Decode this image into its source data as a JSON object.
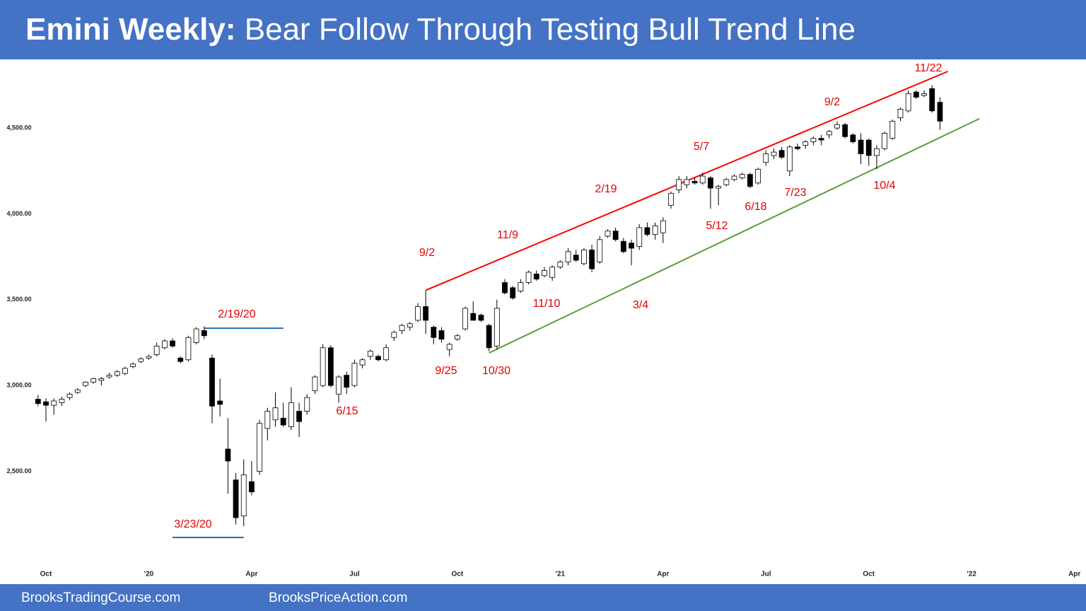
{
  "header": {
    "title_bold": "Emini Weekly:",
    "title": "Bear Follow Through Testing Bull Trend Line"
  },
  "footer": {
    "left": "BrooksTradingCourse.com",
    "right": "BrooksPriceAction.com"
  },
  "chart_data": {
    "type": "candlestick",
    "categories": [
      null,
      "Oct",
      null,
      null,
      null,
      null,
      null,
      null,
      null,
      null,
      null,
      null,
      null,
      null,
      "'20",
      null,
      null,
      null,
      null,
      null,
      null,
      null,
      null,
      null,
      null,
      null,
      null,
      "Apr",
      null,
      null,
      null,
      null,
      null,
      null,
      null,
      null,
      null,
      null,
      null,
      null,
      "Jul",
      null,
      null,
      null,
      null,
      null,
      null,
      null,
      null,
      null,
      null,
      null,
      null,
      "Oct",
      null,
      null,
      null,
      null,
      null,
      null,
      null,
      null,
      null,
      null,
      null,
      null,
      "'21",
      null,
      null,
      null,
      null,
      null,
      null,
      null,
      null,
      null,
      null,
      null,
      null,
      "Apr",
      null,
      null,
      null,
      null,
      null,
      null,
      null,
      null,
      null,
      null,
      null,
      null,
      "Jul",
      null,
      null,
      null,
      null,
      null,
      null,
      null,
      null,
      null,
      null,
      null,
      null,
      "Oct",
      null,
      null,
      null,
      null,
      null,
      null,
      null,
      null,
      null,
      null,
      null,
      null,
      "'22",
      null,
      null,
      null,
      null,
      null,
      null,
      null,
      null,
      null,
      null,
      null,
      null,
      "Apr"
    ],
    "open": [
      2920,
      2905,
      2885,
      2900,
      2930,
      2960,
      3000,
      3020,
      3030,
      3050,
      3060,
      3070,
      3110,
      3140,
      3160,
      3180,
      3220,
      3260,
      3160,
      3150,
      3250,
      3320,
      3160,
      2910,
      2630,
      2450,
      2240,
      2440,
      2500,
      2750,
      2800,
      2810,
      2760,
      2850,
      2850,
      2970,
      3000,
      3220,
      2950,
      3060,
      3000,
      3120,
      3170,
      3170,
      3150,
      3280,
      3320,
      3340,
      3380,
      3460,
      3340,
      3320,
      3210,
      3270,
      3330,
      3420,
      3410,
      3350,
      3230,
      3600,
      3570,
      3550,
      3600,
      3650,
      3640,
      3630,
      3690,
      3720,
      3760,
      3710,
      3790,
      3720,
      3870,
      3900,
      3840,
      3830,
      3810,
      3920,
      3880,
      3890,
      4050,
      4140,
      4170,
      4190,
      4180,
      4210,
      4150,
      4170,
      4200,
      4210,
      4230,
      4180,
      4300,
      4340,
      4370,
      4250,
      4390,
      4400,
      4420,
      4440,
      4460,
      4500,
      4520,
      4460,
      4430,
      4430,
      4340,
      4380,
      4440,
      4560,
      4600,
      4710,
      4690,
      4730,
      4650,
      null,
      null,
      null,
      null,
      null,
      null,
      null,
      null,
      null,
      null,
      null,
      null,
      null,
      null,
      null,
      null,
      null
    ],
    "high": [
      2945,
      2925,
      2925,
      2935,
      2960,
      2985,
      3025,
      3045,
      3050,
      3075,
      3090,
      3110,
      3135,
      3165,
      3180,
      3250,
      3270,
      3275,
      3170,
      3290,
      3340,
      3345,
      3180,
      3040,
      2810,
      2490,
      2570,
      2560,
      2800,
      2870,
      2960,
      2900,
      2990,
      2900,
      2950,
      3060,
      3240,
      3235,
      3060,
      3080,
      3150,
      3160,
      3210,
      3180,
      3240,
      3320,
      3360,
      3370,
      3480,
      3555,
      3350,
      3340,
      3250,
      3300,
      3460,
      3490,
      3420,
      3360,
      3500,
      3620,
      3580,
      3620,
      3670,
      3670,
      3690,
      3700,
      3730,
      3800,
      3790,
      3800,
      3820,
      3870,
      3910,
      3920,
      3860,
      3850,
      3940,
      3950,
      3950,
      3980,
      4130,
      4220,
      4220,
      4210,
      4240,
      4220,
      4170,
      4210,
      4230,
      4240,
      4240,
      4270,
      4370,
      4380,
      4390,
      4400,
      4410,
      4430,
      4450,
      4460,
      4490,
      4540,
      4530,
      4470,
      4470,
      4440,
      4400,
      4480,
      4550,
      4620,
      4720,
      4720,
      4720,
      4750,
      4680,
      null,
      null,
      null,
      null,
      null,
      null,
      null,
      null,
      null,
      null,
      null,
      null,
      null,
      null,
      null,
      null,
      null
    ],
    "low": [
      2880,
      2790,
      2830,
      2880,
      2915,
      2950,
      2990,
      3010,
      3000,
      3040,
      3050,
      3060,
      3100,
      3130,
      3150,
      3170,
      3210,
      3220,
      3130,
      3140,
      3240,
      3270,
      2780,
      2820,
      2370,
      2190,
      2180,
      2360,
      2480,
      2680,
      2760,
      2760,
      2740,
      2700,
      2830,
      2950,
      2990,
      2990,
      2900,
      2950,
      2990,
      3100,
      3150,
      3140,
      3140,
      3260,
      3300,
      3320,
      3370,
      3300,
      3240,
      3250,
      3170,
      3260,
      3320,
      3380,
      3370,
      3200,
      3210,
      3530,
      3500,
      3540,
      3590,
      3610,
      3630,
      3610,
      3680,
      3700,
      3720,
      3700,
      3660,
      3710,
      3860,
      3840,
      3770,
      3700,
      3790,
      3870,
      3850,
      3830,
      4030,
      4120,
      4150,
      4170,
      4170,
      4030,
      4050,
      4160,
      4190,
      4200,
      4150,
      4170,
      4280,
      4320,
      4320,
      4220,
      4370,
      4380,
      4400,
      4400,
      4440,
      4490,
      4440,
      4410,
      4290,
      4280,
      4260,
      4370,
      4430,
      4540,
      4590,
      4670,
      4680,
      4590,
      4490,
      null,
      null,
      null,
      null,
      null,
      null,
      null,
      null,
      null,
      null,
      null,
      null,
      null,
      null,
      null,
      null,
      null
    ],
    "close": [
      2895,
      2885,
      2910,
      2920,
      2950,
      2975,
      3020,
      3040,
      3040,
      3060,
      3080,
      3100,
      3125,
      3155,
      3170,
      3230,
      3260,
      3230,
      3140,
      3280,
      3330,
      3290,
      2880,
      2890,
      2560,
      2230,
      2480,
      2380,
      2780,
      2850,
      2870,
      2770,
      2900,
      2790,
      2930,
      3050,
      3220,
      3000,
      3050,
      2990,
      3130,
      3150,
      3200,
      3150,
      3220,
      3310,
      3350,
      3360,
      3460,
      3380,
      3280,
      3270,
      3240,
      3290,
      3450,
      3380,
      3380,
      3220,
      3450,
      3540,
      3510,
      3600,
      3660,
      3620,
      3670,
      3690,
      3720,
      3780,
      3730,
      3790,
      3680,
      3850,
      3900,
      3850,
      3780,
      3800,
      3920,
      3880,
      3930,
      3960,
      4120,
      4200,
      4200,
      4180,
      4220,
      4150,
      4160,
      4200,
      4220,
      4230,
      4160,
      4260,
      4350,
      4360,
      4330,
      4390,
      4380,
      4420,
      4440,
      4430,
      4480,
      4520,
      4450,
      4420,
      4350,
      4340,
      4380,
      4470,
      4540,
      4610,
      4700,
      4680,
      4700,
      4600,
      4540,
      null,
      null,
      null,
      null,
      null,
      null,
      null,
      null,
      null,
      null,
      null,
      null,
      null,
      null,
      null,
      null,
      null
    ],
    "up_color": "#ffffff",
    "down_color": "#000000",
    "wick_color": "#000000",
    "ylim": [
      1950,
      4900
    ],
    "yticks": [
      {
        "value": 2500,
        "label": "2,500.00"
      },
      {
        "value": 3000,
        "label": "3,000.00"
      },
      {
        "value": 3500,
        "label": "3,500.00"
      },
      {
        "value": 4000,
        "label": "4,000.00"
      },
      {
        "value": 4500,
        "label": "4,500.00"
      }
    ],
    "lines": [
      {
        "color": "#ff0000",
        "x": [
          49,
          115
        ],
        "y": [
          3555,
          4830
        ]
      },
      {
        "color": "#5a9e3a",
        "x": [
          57,
          119
        ],
        "y": [
          3190,
          4555
        ]
      },
      {
        "color": "#1f6fb5",
        "x": [
          21,
          31
        ],
        "y": [
          3334,
          3334
        ]
      },
      {
        "color": "#1f6fb5",
        "x": [
          17,
          26
        ],
        "y": [
          2115,
          2115
        ]
      }
    ],
    "annotations": [
      "2/19/20",
      "3/23/20",
      "6/15",
      "9/2",
      "9/25",
      "10/30",
      "11/9",
      "11/10",
      "3/4",
      "2/19",
      "5/7",
      "5/12",
      "6/18",
      "7/23",
      "9/2",
      "10/4",
      "11/22"
    ]
  }
}
